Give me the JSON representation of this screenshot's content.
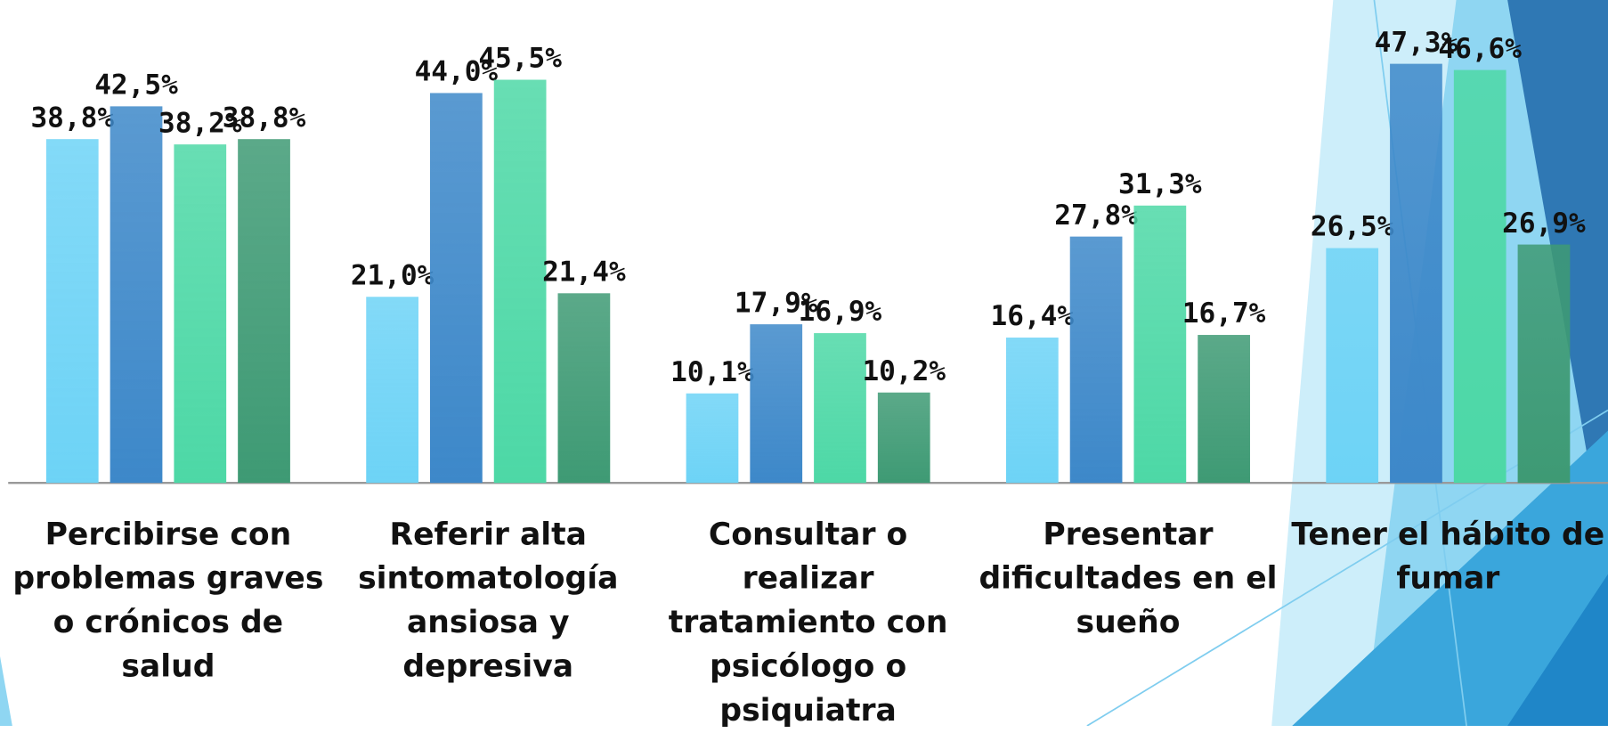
{
  "chart_data": {
    "type": "bar",
    "categories": [
      "Percibirse con problemas graves o crónicos de salud",
      "Referir alta sintomatología ansiosa y depresiva",
      "Consultar o realizar tratamiento con psicólogo o psiquiatra",
      "Presentar dificultades en el sueño",
      "Tener el hábito de fumar"
    ],
    "series": [
      {
        "color": "#6dd3f6",
        "values": [
          38.8,
          21.0,
          10.1,
          16.4,
          26.5
        ],
        "value_labels": [
          "38,8%",
          "21,0%",
          "10,1%",
          "16,4%",
          "26,5%"
        ]
      },
      {
        "color": "#3d88c9",
        "values": [
          42.5,
          44.0,
          17.9,
          27.8,
          47.3
        ],
        "value_labels": [
          "42,5%",
          "44,0%",
          "17,9%",
          "27,8%",
          "47,3%"
        ]
      },
      {
        "color": "#4dd8a6",
        "values": [
          38.2,
          45.5,
          16.9,
          31.3,
          46.6
        ],
        "value_labels": [
          "38,2%",
          "45,5%",
          "16,9%",
          "31,3%",
          "46,6%"
        ]
      },
      {
        "color": "#3e9a74",
        "values": [
          38.8,
          21.4,
          10.2,
          16.7,
          26.9
        ],
        "value_labels": [
          "38,8%",
          "21,4%",
          "10,2%",
          "16,7%",
          "26,9%"
        ]
      }
    ],
    "ylim": [
      0,
      54.5
    ]
  }
}
